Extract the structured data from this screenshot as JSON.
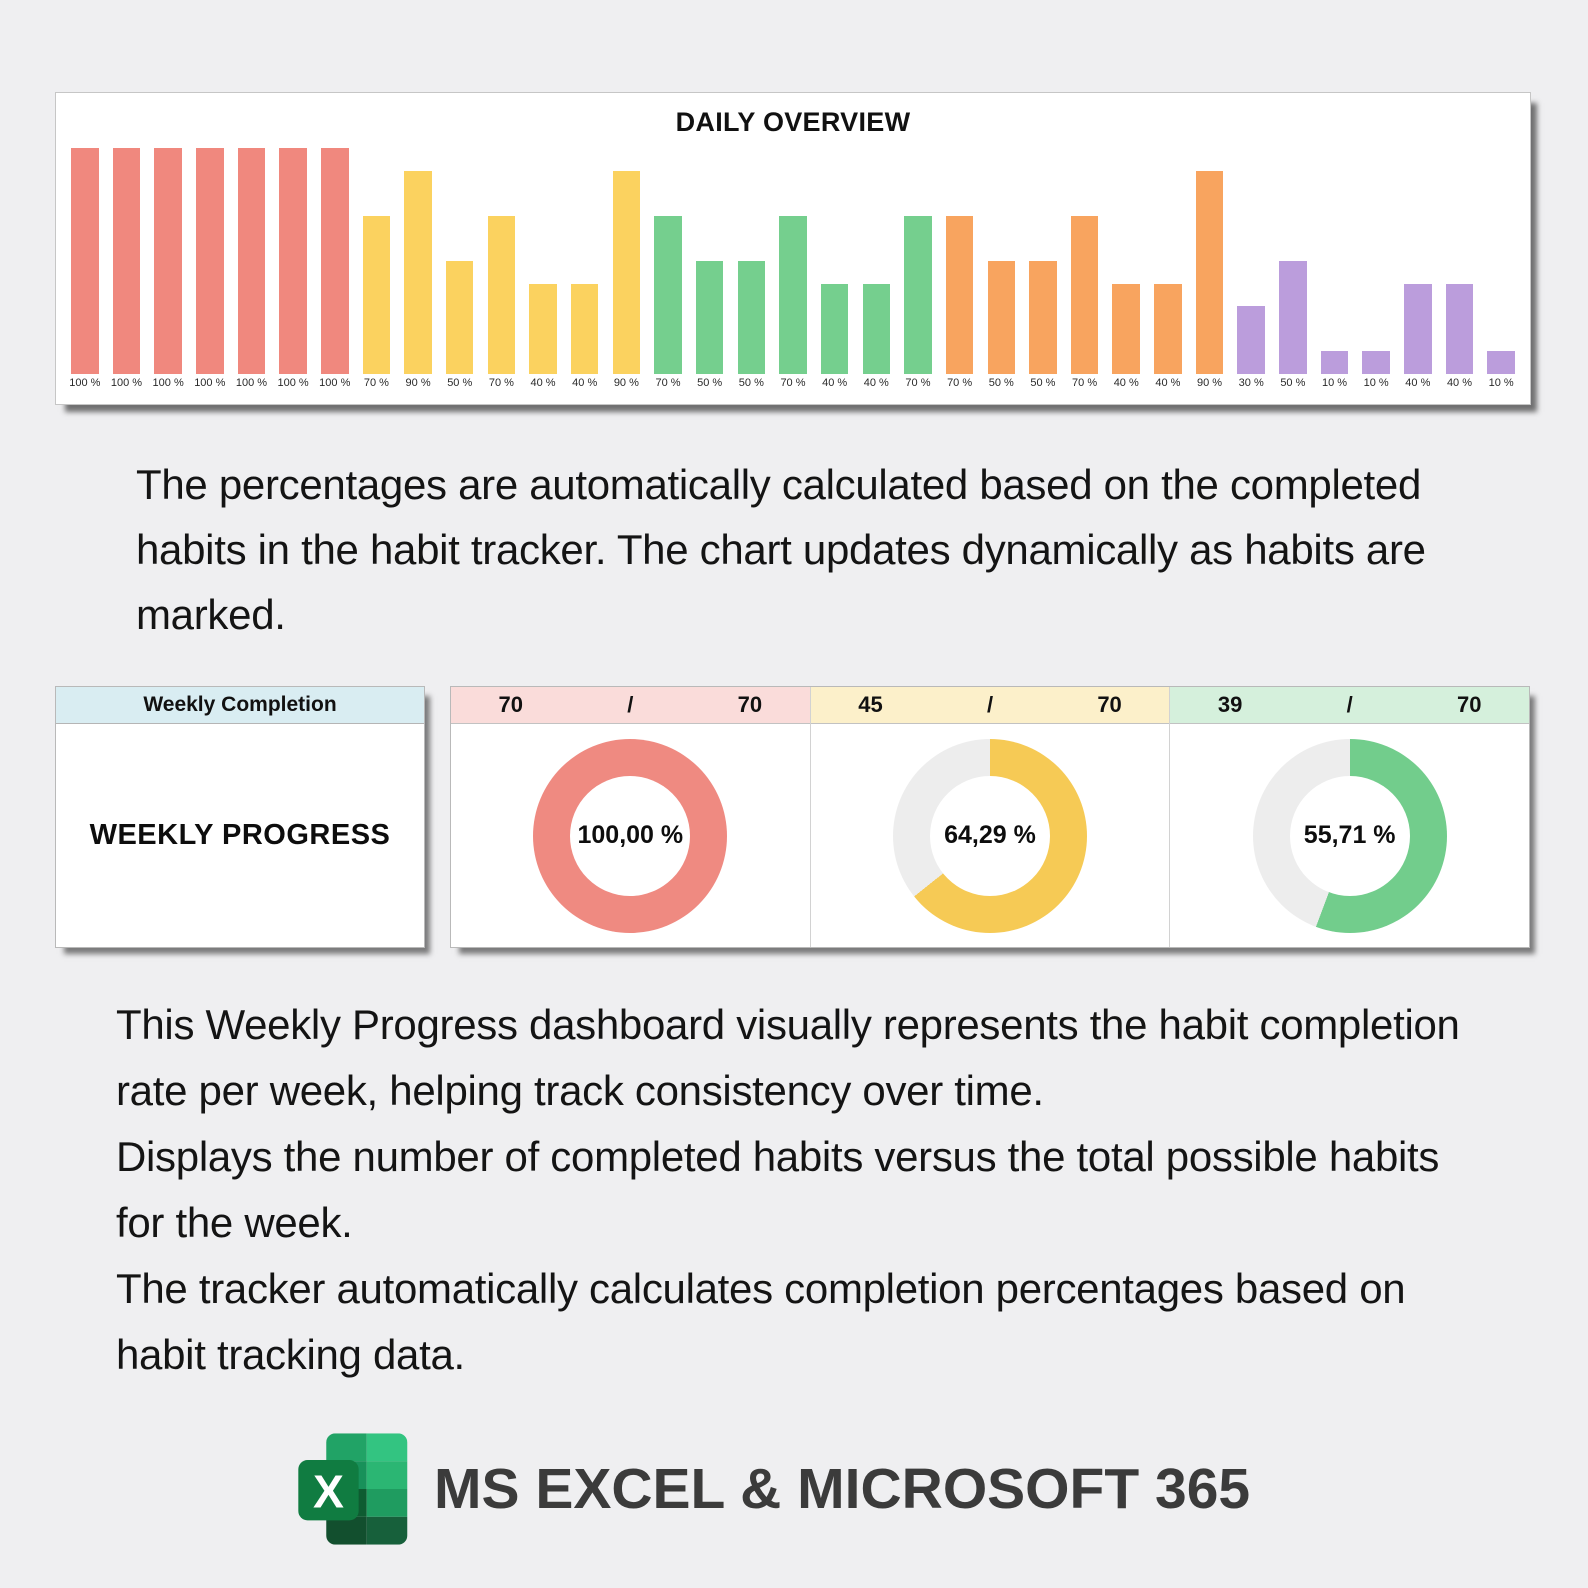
{
  "page": {
    "background": "#efeff1"
  },
  "chart_data": [
    {
      "type": "bar",
      "title": "DAILY OVERVIEW",
      "values": [
        100,
        100,
        100,
        100,
        100,
        100,
        100,
        70,
        90,
        50,
        70,
        40,
        40,
        90,
        70,
        50,
        50,
        70,
        40,
        40,
        70,
        70,
        50,
        50,
        70,
        40,
        40,
        90,
        30,
        50,
        10,
        10,
        40,
        40,
        10
      ],
      "tick_labels": [
        "100 %",
        "100 %",
        "100 %",
        "100 %",
        "100 %",
        "100 %",
        "100 %",
        "70 %",
        "90 %",
        "50 %",
        "70 %",
        "40 %",
        "40 %",
        "90 %",
        "70 %",
        "50 %",
        "50 %",
        "70 %",
        "40 %",
        "40 %",
        "70 %",
        "70 %",
        "50 %",
        "50 %",
        "70 %",
        "40 %",
        "40 %",
        "90 %",
        "30 %",
        "50 %",
        "10 %",
        "10 %",
        "40 %",
        "40 %",
        "10 %"
      ],
      "group_size": 7,
      "group_colors": [
        "#f0887e",
        "#fbd25f",
        "#75cf8e",
        "#f8a45f",
        "#bb9ddc"
      ],
      "ylim": [
        0,
        100
      ],
      "grid": false,
      "legend": "none",
      "data_labels_position": "below-bars"
    },
    {
      "type": "pie",
      "variant": "donut",
      "name": "week-1",
      "completed": "70",
      "total": "70",
      "value_pct": 100,
      "center_label": "100,00 %",
      "ring_color": "#ef8a81",
      "track_color": "#ededed",
      "header_bg": "#fadcda"
    },
    {
      "type": "pie",
      "variant": "donut",
      "name": "week-2",
      "completed": "45",
      "total": "70",
      "value_pct": 64.29,
      "center_label": "64,29 %",
      "ring_color": "#f6ca55",
      "track_color": "#ededed",
      "header_bg": "#fcf0ca"
    },
    {
      "type": "pie",
      "variant": "donut",
      "name": "week-3",
      "completed": "39",
      "total": "70",
      "value_pct": 55.71,
      "center_label": "55,71 %",
      "ring_color": "#72cd8c",
      "track_color": "#ededed",
      "header_bg": "#d5f0dc"
    }
  ],
  "paragraphs": {
    "daily": "The percentages are automatically calculated based on the completed habits in the habit tracker. The chart updates dynamically as habits are marked.",
    "weekly": [
      "This Weekly Progress dashboard visually represents the habit completion rate per week, helping track consistency over time.",
      "Displays the number of completed habits versus the total possible habits for the week.",
      "The tracker automatically calculates completion percentages based on habit tracking data."
    ]
  },
  "weekly": {
    "header": "Weekly Completion",
    "title": "WEEKLY PROGRESS",
    "slash": "/",
    "header_bg": "#d9edf2"
  },
  "footer": {
    "brand": "MS EXCEL & MICROSOFT 365",
    "logo": "excel-icon",
    "logo_letter": "X",
    "logo_colors": {
      "light_green": "#33c481",
      "mid_green": "#21a366",
      "green": "#107c41",
      "dark_green": "#185c37",
      "text": "#3b3b3b"
    }
  }
}
